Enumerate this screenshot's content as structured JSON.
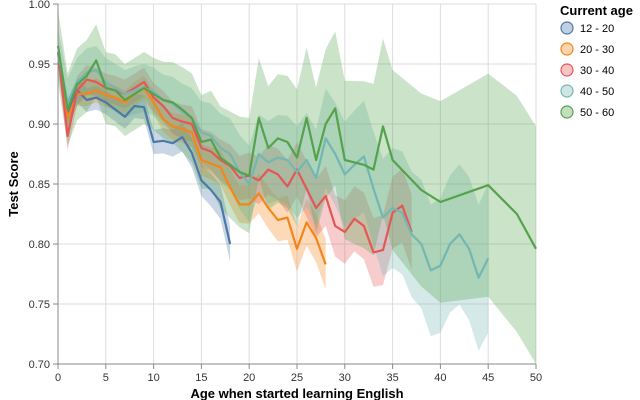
{
  "chart_data": {
    "type": "line",
    "title": "",
    "xlabel": "Age when started learning English",
    "ylabel": "Test Score",
    "xlim": [
      0,
      50
    ],
    "ylim": [
      0.7,
      1.0
    ],
    "x_ticks": [
      0,
      5,
      10,
      15,
      20,
      25,
      30,
      35,
      40,
      45,
      50
    ],
    "y_ticks": [
      0.7,
      0.75,
      0.8,
      0.85,
      0.9,
      0.95,
      1.0
    ],
    "x_tick_labels": [
      "0",
      "5",
      "10",
      "15",
      "20",
      "25",
      "30",
      "35",
      "40",
      "45",
      "50"
    ],
    "y_tick_labels": [
      "0.70",
      "0.75",
      "0.80",
      "0.85",
      "0.90",
      "0.95",
      "1.00"
    ],
    "grid": true,
    "legend": {
      "title": "Current age",
      "placement": "top-right",
      "entries": [
        "12 - 20",
        "20 - 30",
        "30 - 40",
        "40 - 50",
        "50 - 60"
      ]
    },
    "series": [
      {
        "name": "12 - 20",
        "color": "#4c78a8",
        "x": [
          0,
          1,
          2,
          3,
          4,
          5,
          6,
          7,
          8,
          9,
          10,
          11,
          12,
          13,
          14,
          15,
          16,
          17,
          18
        ],
        "values": [
          0.96,
          0.91,
          0.928,
          0.92,
          0.922,
          0.918,
          0.912,
          0.906,
          0.915,
          0.914,
          0.885,
          0.886,
          0.884,
          0.889,
          0.876,
          0.853,
          0.845,
          0.835,
          0.8
        ],
        "band": 0.01
      },
      {
        "name": "20 - 30",
        "color": "#f58518",
        "x": [
          0,
          1,
          2,
          3,
          4,
          5,
          6,
          7,
          8,
          9,
          10,
          11,
          12,
          13,
          14,
          15,
          16,
          17,
          18,
          19,
          20,
          21,
          22,
          23,
          24,
          25,
          26,
          27,
          28
        ],
        "values": [
          0.96,
          0.905,
          0.925,
          0.925,
          0.928,
          0.924,
          0.922,
          0.918,
          0.925,
          0.93,
          0.918,
          0.904,
          0.898,
          0.896,
          0.893,
          0.87,
          0.867,
          0.864,
          0.847,
          0.833,
          0.833,
          0.842,
          0.83,
          0.82,
          0.822,
          0.796,
          0.818,
          0.805,
          0.783
        ],
        "band": 0.01
      },
      {
        "name": "30 - 40",
        "color": "#e45756",
        "x": [
          0,
          1,
          2,
          3,
          4,
          5,
          6,
          7,
          8,
          9,
          10,
          11,
          12,
          13,
          14,
          15,
          16,
          17,
          18,
          19,
          20,
          21,
          22,
          23,
          24,
          25,
          26,
          27,
          28,
          29,
          30,
          31,
          32,
          33,
          34,
          35,
          36,
          37
        ],
        "values": [
          0.96,
          0.89,
          0.928,
          0.937,
          0.935,
          0.93,
          0.928,
          0.925,
          0.93,
          0.935,
          0.922,
          0.915,
          0.905,
          0.902,
          0.9,
          0.88,
          0.877,
          0.87,
          0.865,
          0.855,
          0.857,
          0.853,
          0.862,
          0.858,
          0.848,
          0.862,
          0.846,
          0.83,
          0.84,
          0.815,
          0.81,
          0.821,
          0.815,
          0.793,
          0.795,
          0.826,
          0.832,
          0.81
        ],
        "band": 0.012
      },
      {
        "name": "40 - 50",
        "color": "#72b7b2",
        "x": [
          0,
          1,
          2,
          3,
          4,
          5,
          6,
          7,
          8,
          9,
          10,
          11,
          12,
          13,
          14,
          15,
          16,
          17,
          18,
          19,
          20,
          21,
          22,
          23,
          24,
          25,
          26,
          27,
          28,
          29,
          30,
          31,
          32,
          33,
          34,
          35,
          36,
          37,
          38,
          39,
          40,
          41,
          42,
          43,
          44,
          45
        ],
        "values": [
          0.96,
          0.918,
          0.935,
          0.943,
          0.945,
          0.935,
          0.93,
          0.925,
          0.928,
          0.93,
          0.927,
          0.92,
          0.917,
          0.91,
          0.905,
          0.893,
          0.89,
          0.88,
          0.875,
          0.86,
          0.85,
          0.875,
          0.868,
          0.872,
          0.87,
          0.86,
          0.87,
          0.855,
          0.888,
          0.875,
          0.858,
          0.866,
          0.873,
          0.846,
          0.822,
          0.83,
          0.826,
          0.808,
          0.8,
          0.778,
          0.782,
          0.8,
          0.808,
          0.796,
          0.772,
          0.788
        ],
        "band": 0.02
      },
      {
        "name": "50 - 60",
        "color": "#54a24b",
        "x": [
          0,
          1,
          2,
          3,
          4,
          5,
          6,
          7,
          8,
          9,
          10,
          11,
          12,
          13,
          14,
          15,
          16,
          17,
          18,
          19,
          20,
          21,
          22,
          23,
          24,
          25,
          26,
          27,
          28,
          29,
          30,
          31,
          32,
          33,
          34,
          35,
          38,
          40,
          45,
          48,
          50
        ],
        "values": [
          0.965,
          0.912,
          0.933,
          0.94,
          0.953,
          0.93,
          0.928,
          0.92,
          0.925,
          0.93,
          0.925,
          0.92,
          0.918,
          0.912,
          0.905,
          0.885,
          0.887,
          0.872,
          0.866,
          0.86,
          0.857,
          0.905,
          0.88,
          0.888,
          0.885,
          0.872,
          0.905,
          0.87,
          0.9,
          0.913,
          0.87,
          0.868,
          0.866,
          0.862,
          0.898,
          0.87,
          0.845,
          0.835,
          0.849,
          0.825,
          0.796
        ],
        "band": 0.03
      }
    ]
  }
}
